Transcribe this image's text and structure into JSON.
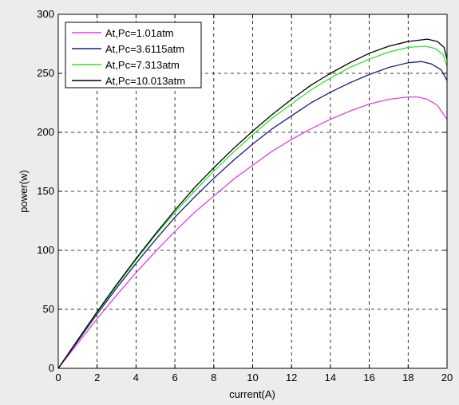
{
  "chart_data": {
    "type": "line",
    "title": "",
    "xlabel": "current(A)",
    "ylabel": "power(w)",
    "xlim": [
      0,
      20
    ],
    "ylim": [
      0,
      300
    ],
    "xticks": [
      0,
      2,
      4,
      6,
      8,
      10,
      12,
      14,
      16,
      18,
      20
    ],
    "yticks": [
      0,
      50,
      100,
      150,
      200,
      250,
      300
    ],
    "grid": true,
    "legend_position": "top-left",
    "series": [
      {
        "name": "At,Pc=1.01atm",
        "color": "#e040e0",
        "points": [
          [
            0,
            0
          ],
          [
            1,
            21
          ],
          [
            2,
            42
          ],
          [
            3,
            62
          ],
          [
            4,
            81
          ],
          [
            5,
            99
          ],
          [
            6,
            116
          ],
          [
            7,
            132
          ],
          [
            8,
            146
          ],
          [
            9,
            160
          ],
          [
            10,
            172
          ],
          [
            11,
            184
          ],
          [
            12,
            194
          ],
          [
            13,
            203
          ],
          [
            14,
            211
          ],
          [
            15,
            218
          ],
          [
            16,
            224
          ],
          [
            17,
            228
          ],
          [
            18,
            230
          ],
          [
            18.5,
            230
          ],
          [
            19,
            228
          ],
          [
            19.5,
            223
          ],
          [
            20,
            211
          ]
        ]
      },
      {
        "name": "At,Pc=3.6115atm",
        "color": "#1a1a80",
        "points": [
          [
            0,
            0
          ],
          [
            1,
            23
          ],
          [
            2,
            46
          ],
          [
            3,
            68
          ],
          [
            4,
            89
          ],
          [
            5,
            109
          ],
          [
            6,
            128
          ],
          [
            7,
            145
          ],
          [
            8,
            161
          ],
          [
            9,
            176
          ],
          [
            10,
            190
          ],
          [
            11,
            203
          ],
          [
            12,
            214
          ],
          [
            13,
            225
          ],
          [
            14,
            234
          ],
          [
            15,
            242
          ],
          [
            16,
            249
          ],
          [
            17,
            255
          ],
          [
            18,
            259
          ],
          [
            18.7,
            260
          ],
          [
            19.2,
            258
          ],
          [
            19.7,
            253
          ],
          [
            20,
            244
          ]
        ]
      },
      {
        "name": "At,Pc=7.313atm",
        "color": "#30e030",
        "points": [
          [
            0,
            0
          ],
          [
            1,
            24
          ],
          [
            2,
            47
          ],
          [
            3,
            70
          ],
          [
            4,
            92
          ],
          [
            5,
            113
          ],
          [
            6,
            132
          ],
          [
            7,
            150
          ],
          [
            8,
            167
          ],
          [
            9,
            183
          ],
          [
            10,
            198
          ],
          [
            11,
            212
          ],
          [
            12,
            224
          ],
          [
            13,
            236
          ],
          [
            14,
            246
          ],
          [
            15,
            255
          ],
          [
            16,
            262
          ],
          [
            17,
            268
          ],
          [
            18,
            272
          ],
          [
            18.9,
            273
          ],
          [
            19.4,
            271
          ],
          [
            19.8,
            266
          ],
          [
            20,
            256
          ]
        ]
      },
      {
        "name": "At,Pc=10.013atm",
        "color": "#000000",
        "points": [
          [
            0,
            0
          ],
          [
            1,
            24
          ],
          [
            2,
            48
          ],
          [
            3,
            71
          ],
          [
            4,
            93
          ],
          [
            5,
            114
          ],
          [
            6,
            134
          ],
          [
            7,
            153
          ],
          [
            8,
            170
          ],
          [
            9,
            186
          ],
          [
            10,
            201
          ],
          [
            11,
            215
          ],
          [
            12,
            228
          ],
          [
            13,
            240
          ],
          [
            14,
            250
          ],
          [
            15,
            259
          ],
          [
            16,
            267
          ],
          [
            17,
            273
          ],
          [
            18,
            277
          ],
          [
            19,
            279
          ],
          [
            19.5,
            277
          ],
          [
            19.85,
            272
          ],
          [
            20,
            262
          ]
        ]
      }
    ]
  }
}
